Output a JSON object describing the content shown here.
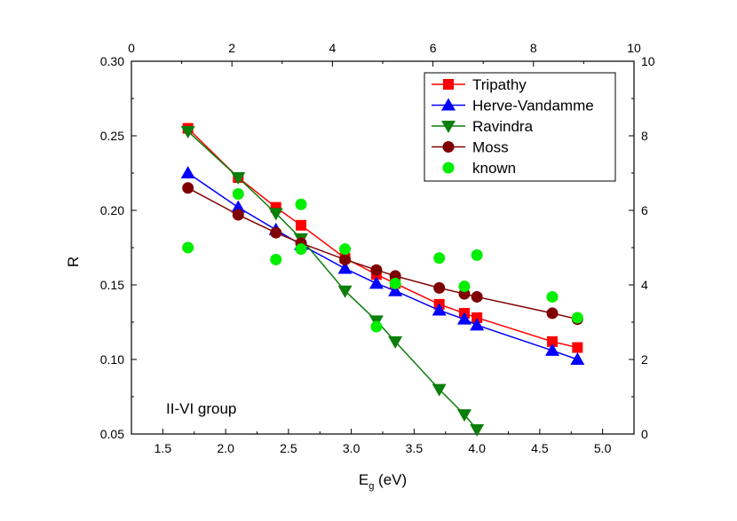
{
  "chart_data": {
    "type": "scatter",
    "xlabel_main": "E",
    "xlabel_sub": "g",
    "xlabel_unit": " (eV)",
    "ylabel": "R",
    "annotation": "II-VI group",
    "xlim": [
      1.25,
      5.25
    ],
    "ylim": [
      0.05,
      0.3
    ],
    "x_ticks": [
      "1.5",
      "2.0",
      "2.5",
      "3.0",
      "3.5",
      "4.0",
      "4.5",
      "5.0"
    ],
    "y_ticks": [
      "0.05",
      "0.10",
      "0.15",
      "0.20",
      "0.25",
      "0.30"
    ],
    "top_axis": {
      "lim": [
        0,
        10
      ],
      "ticks": [
        "0",
        "2",
        "4",
        "6",
        "8",
        "10"
      ]
    },
    "right_axis": {
      "lim": [
        0,
        10
      ],
      "ticks": [
        "0",
        "2",
        "4",
        "6",
        "8",
        "10"
      ]
    },
    "legend_position": "top-right",
    "series": [
      {
        "name": "Tripathy",
        "color": "#ff0000",
        "marker": "square",
        "line": true,
        "x": [
          1.7,
          2.1,
          2.4,
          2.6,
          2.95,
          3.2,
          3.35,
          3.7,
          3.9,
          4.0,
          4.6,
          4.8
        ],
        "y": [
          0.255,
          0.222,
          0.202,
          0.19,
          0.168,
          0.157,
          0.151,
          0.137,
          0.131,
          0.128,
          0.112,
          0.108
        ]
      },
      {
        "name": "Herve-Vandamme",
        "color": "#0000ff",
        "marker": "triangle-up",
        "line": true,
        "x": [
          1.7,
          2.1,
          2.4,
          2.6,
          2.95,
          3.2,
          3.35,
          3.7,
          3.9,
          4.0,
          4.6,
          4.8
        ],
        "y": [
          0.225,
          0.202,
          0.187,
          0.177,
          0.161,
          0.151,
          0.146,
          0.133,
          0.127,
          0.123,
          0.106,
          0.1
        ]
      },
      {
        "name": "Ravindra",
        "color": "#0a7f0a",
        "marker": "triangle-down",
        "line": true,
        "x": [
          1.7,
          2.1,
          2.4,
          2.6,
          2.95,
          3.2,
          3.35,
          3.7,
          3.9,
          4.0
        ],
        "y": [
          0.253,
          0.222,
          0.198,
          0.181,
          0.146,
          0.126,
          0.112,
          0.08,
          0.063,
          0.053
        ]
      },
      {
        "name": "Moss",
        "color": "#7f0000",
        "marker": "circle",
        "line": true,
        "x": [
          1.7,
          2.1,
          2.4,
          2.6,
          2.95,
          3.2,
          3.35,
          3.7,
          3.9,
          4.0,
          4.6,
          4.8
        ],
        "y": [
          0.215,
          0.197,
          0.185,
          0.178,
          0.167,
          0.16,
          0.156,
          0.148,
          0.144,
          0.142,
          0.131,
          0.127
        ]
      },
      {
        "name": "known",
        "color": "#00ee00",
        "marker": "circle",
        "line": false,
        "x": [
          1.7,
          2.1,
          2.4,
          2.6,
          2.6,
          2.95,
          3.2,
          3.35,
          3.7,
          3.9,
          4.0,
          4.6,
          4.8
        ],
        "y": [
          0.175,
          0.211,
          0.167,
          0.174,
          0.204,
          0.174,
          0.122,
          0.151,
          0.168,
          0.149,
          0.17,
          0.142,
          0.128
        ]
      }
    ]
  }
}
